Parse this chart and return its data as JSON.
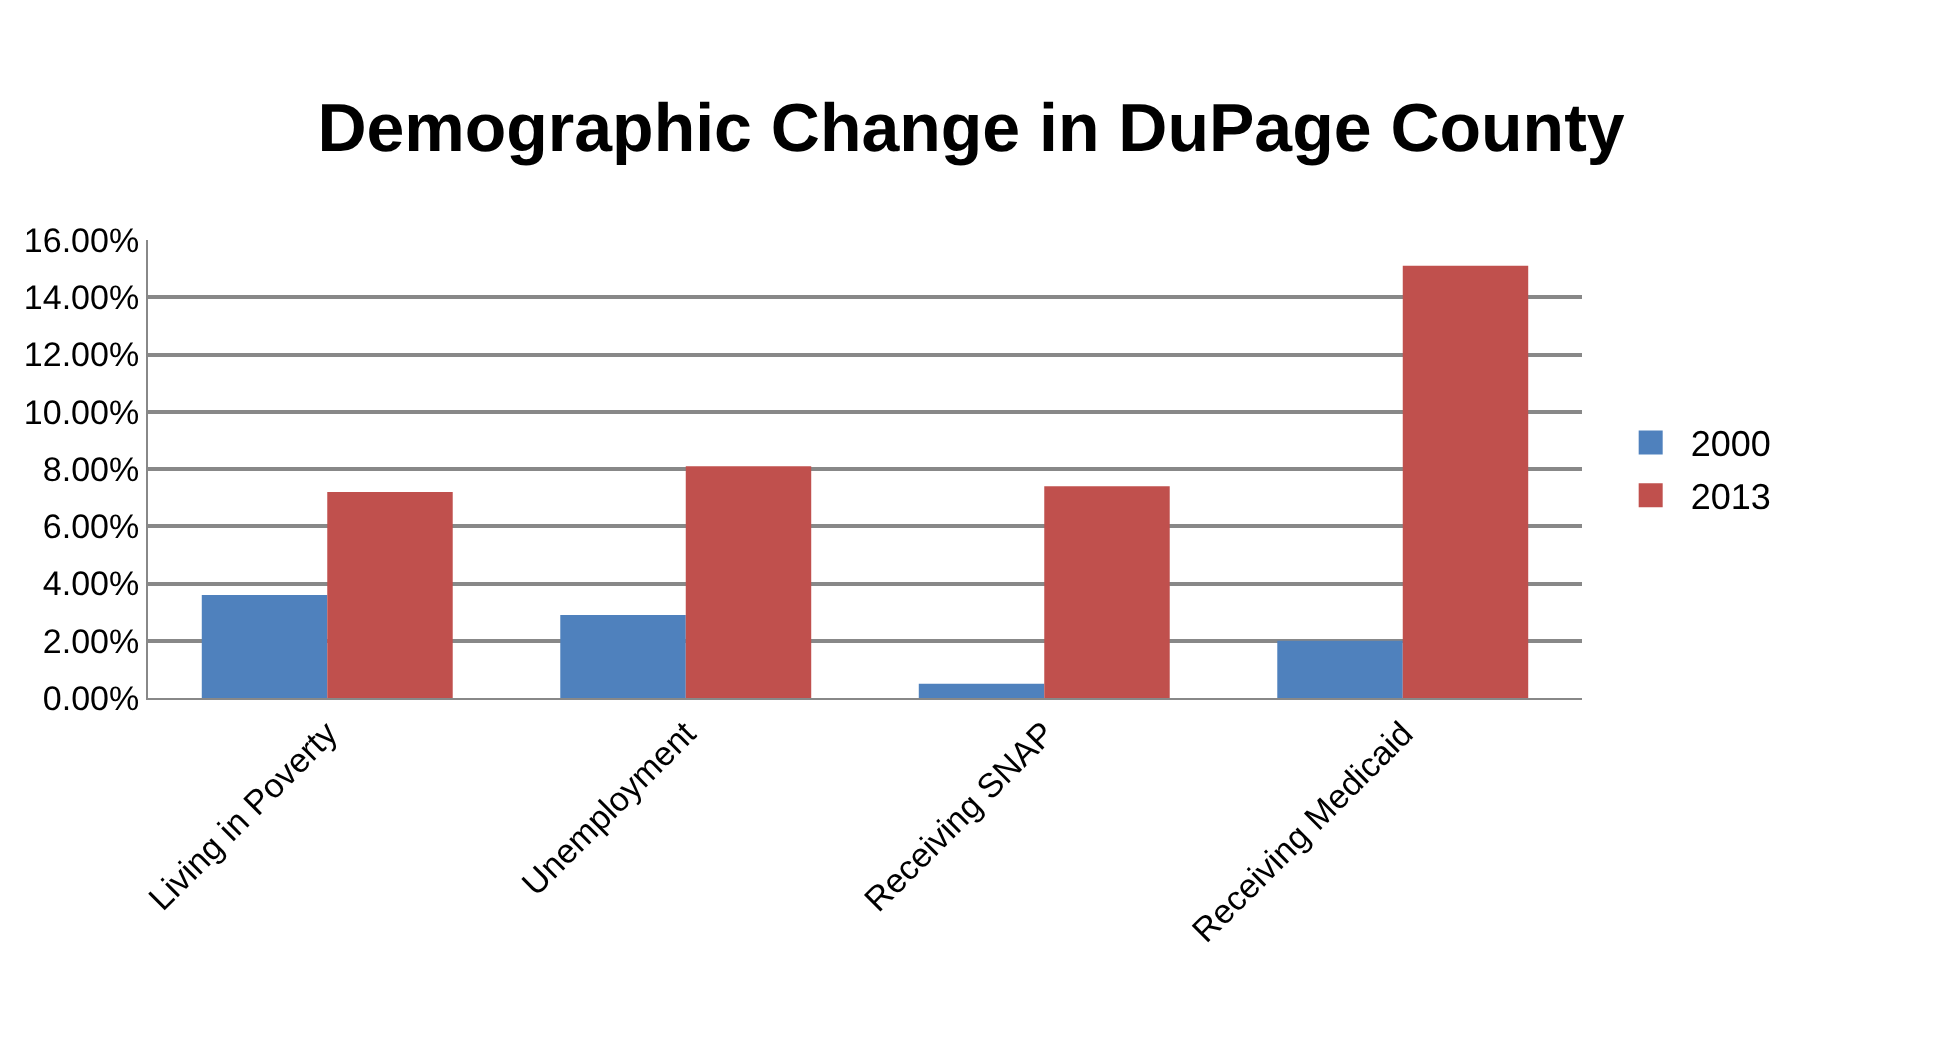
{
  "chart_data": {
    "type": "bar",
    "title": "Demographic Change in DuPage County",
    "categories": [
      "Living in Poverty",
      "Unemployment",
      "Receiving SNAP",
      "Receiving Medicaid"
    ],
    "series": [
      {
        "name": "2000",
        "color": "#4f81bd",
        "values": [
          3.6,
          2.9,
          0.5,
          2.0
        ]
      },
      {
        "name": "2013",
        "color": "#c0504d",
        "values": [
          7.2,
          8.1,
          7.4,
          15.1
        ]
      }
    ],
    "ylim": [
      0,
      16
    ],
    "yticks": [
      {
        "value": 0,
        "label": "0.00%"
      },
      {
        "value": 2,
        "label": "2.00%"
      },
      {
        "value": 4,
        "label": "4.00%"
      },
      {
        "value": 6,
        "label": "6.00%"
      },
      {
        "value": 8,
        "label": "8.00%"
      },
      {
        "value": 10,
        "label": "10.00%"
      },
      {
        "value": 12,
        "label": "12.00%"
      },
      {
        "value": 14,
        "label": "14.00%"
      },
      {
        "value": 16,
        "label": "16.00%"
      }
    ],
    "grid": "y",
    "legend": "right"
  }
}
